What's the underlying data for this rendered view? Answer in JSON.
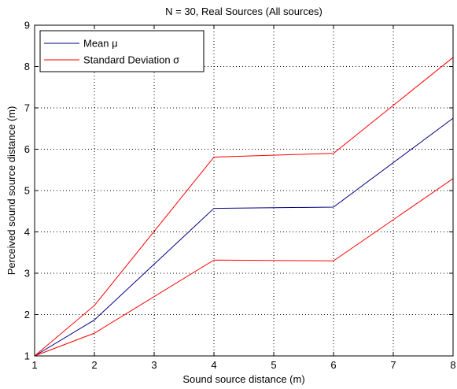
{
  "chart_data": {
    "type": "line",
    "title": "N = 30, Real Sources (All sources)",
    "xlabel": "Sound source distance (m)",
    "ylabel": "Perceived sound source distance (m)",
    "x_ticks": [
      "1",
      "2",
      "3",
      "4",
      "5",
      "6",
      "7",
      "8"
    ],
    "y_ticks": [
      "1",
      "2",
      "3",
      "4",
      "5",
      "6",
      "7",
      "8",
      "9"
    ],
    "xlim": [
      1,
      8
    ],
    "ylim": [
      1,
      9
    ],
    "grid": true,
    "legend_position": "top-left",
    "series": [
      {
        "name": "Mean μ",
        "color": "#000080",
        "points": [
          [
            1,
            1.0
          ],
          [
            2,
            1.87
          ],
          [
            4,
            4.57
          ],
          [
            6,
            4.6
          ],
          [
            8,
            6.75
          ]
        ]
      },
      {
        "name": "Standard Deviation σ",
        "color": "#ff0000",
        "points": [
          [
            1,
            1.0
          ],
          [
            2,
            2.22
          ],
          [
            4,
            5.81
          ],
          [
            6,
            5.9
          ],
          [
            8,
            8.22
          ]
        ]
      },
      {
        "name": "",
        "color": "#ff0000",
        "points": [
          [
            1,
            1.0
          ],
          [
            2,
            1.55
          ],
          [
            4,
            3.32
          ],
          [
            6,
            3.3
          ],
          [
            8,
            5.29
          ]
        ]
      }
    ]
  }
}
